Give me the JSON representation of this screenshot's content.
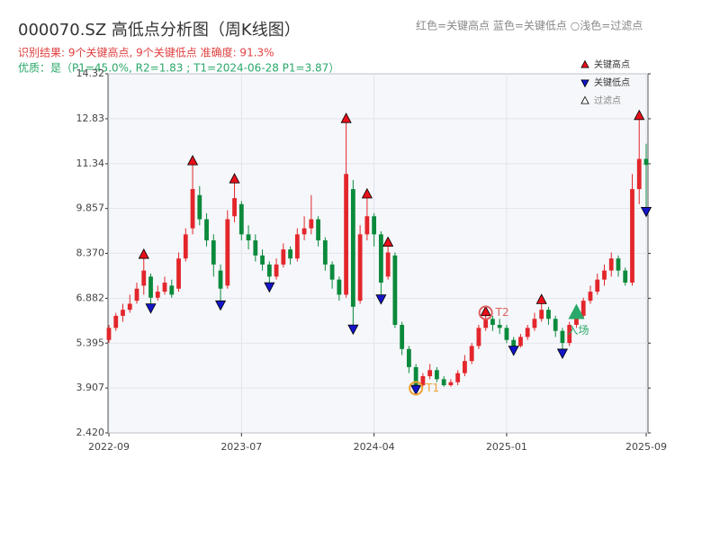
{
  "chart_data": {
    "type": "candlestick",
    "title": "000070.SZ 高低点分析图（周K线图）",
    "subtitle": "识别结果: 9个关键高点, 9个关键低点  准确度: 91.3%",
    "quality": "优质：是（P1=45.0%, R2=1.83 ; T1=2024-06-28 P1=3.87）",
    "color_note": "红色=关键高点      蓝色=关键低点   ○浅色=过滤点",
    "legend": [
      "关键高点",
      "关键低点",
      "过滤点"
    ],
    "up_color": "#e3262b",
    "down_color": "#0b8a3c",
    "high_color": "#e8101a",
    "low_color": "#1414c8",
    "entry_color": "#2aa86a",
    "ylim": [
      2.42,
      14.32
    ],
    "yticks": [
      {
        "value": 2.42,
        "label": "2.420"
      },
      3.907,
      5.395,
      6.882,
      {
        "value": 8.37,
        "label": "8.370"
      },
      9.857,
      11.34,
      12.83,
      14.32
    ],
    "grid": true,
    "categories": [
      "2022-09",
      null,
      null,
      null,
      null,
      null,
      null,
      null,
      null,
      null,
      null,
      null,
      null,
      null,
      null,
      null,
      null,
      null,
      null,
      "2023-07",
      null,
      null,
      null,
      null,
      null,
      null,
      null,
      null,
      null,
      null,
      null,
      null,
      null,
      null,
      null,
      null,
      null,
      null,
      "2024-04",
      null,
      null,
      null,
      null,
      null,
      null,
      null,
      null,
      null,
      null,
      null,
      null,
      null,
      null,
      null,
      null,
      null,
      null,
      "2025-01",
      null,
      null,
      null,
      null,
      null,
      null,
      null,
      null,
      null,
      null,
      null,
      null,
      null,
      null,
      null,
      null,
      null,
      null,
      null,
      "2025-09"
    ],
    "candles": [
      [
        5.5,
        5.9,
        5.4,
        6.0
      ],
      [
        5.9,
        6.3,
        5.8,
        6.4
      ],
      [
        6.3,
        6.5,
        6.1,
        6.7
      ],
      [
        6.5,
        6.7,
        6.4,
        7.0
      ],
      [
        6.8,
        7.2,
        6.7,
        7.4
      ],
      [
        7.3,
        7.8,
        7.0,
        8.3
      ],
      [
        7.6,
        6.9,
        6.6,
        7.7
      ],
      [
        6.9,
        7.1,
        6.8,
        7.3
      ],
      [
        7.1,
        7.4,
        7.0,
        7.6
      ],
      [
        7.3,
        7.0,
        6.9,
        7.5
      ],
      [
        7.2,
        8.2,
        7.1,
        8.4
      ],
      [
        8.2,
        9.0,
        8.1,
        9.2
      ],
      [
        9.2,
        10.5,
        9.0,
        11.4
      ],
      [
        10.3,
        9.5,
        9.3,
        10.6
      ],
      [
        9.5,
        8.8,
        8.6,
        9.7
      ],
      [
        8.8,
        8.0,
        7.6,
        9.0
      ],
      [
        7.8,
        7.2,
        6.7,
        8.0
      ],
      [
        7.3,
        9.5,
        7.2,
        9.8
      ],
      [
        9.6,
        10.2,
        9.4,
        10.8
      ],
      [
        10.0,
        9.0,
        8.8,
        10.1
      ],
      [
        9.0,
        8.8,
        8.5,
        9.3
      ],
      [
        8.8,
        8.3,
        8.1,
        9.0
      ],
      [
        8.3,
        8.0,
        7.8,
        8.5
      ],
      [
        8.0,
        7.6,
        7.3,
        8.1
      ],
      [
        7.6,
        8.0,
        7.5,
        8.2
      ],
      [
        8.0,
        8.5,
        7.9,
        8.7
      ],
      [
        8.5,
        8.2,
        8.0,
        8.6
      ],
      [
        8.2,
        9.0,
        8.1,
        9.2
      ],
      [
        9.0,
        9.2,
        8.8,
        9.6
      ],
      [
        9.2,
        9.5,
        9.0,
        10.3
      ],
      [
        9.5,
        8.8,
        8.6,
        9.6
      ],
      [
        8.8,
        8.0,
        7.8,
        8.9
      ],
      [
        8.0,
        7.5,
        7.2,
        8.1
      ],
      [
        7.5,
        7.0,
        6.8,
        7.6
      ],
      [
        7.0,
        11.0,
        6.9,
        12.8
      ],
      [
        10.5,
        6.6,
        5.9,
        10.8
      ],
      [
        6.8,
        9.0,
        6.7,
        9.3
      ],
      [
        9.0,
        9.6,
        8.8,
        10.3
      ],
      [
        9.6,
        9.0,
        8.6,
        9.7
      ],
      [
        9.0,
        7.4,
        6.9,
        9.1
      ],
      [
        7.6,
        8.4,
        7.5,
        8.7
      ],
      [
        8.3,
        6.0,
        5.9,
        8.4
      ],
      [
        6.0,
        5.2,
        5.0,
        6.1
      ],
      [
        5.2,
        4.6,
        4.4,
        5.3
      ],
      [
        4.6,
        4.0,
        3.9,
        4.7
      ],
      [
        4.0,
        4.3,
        3.95,
        4.4
      ],
      [
        4.3,
        4.5,
        4.2,
        4.7
      ],
      [
        4.5,
        4.2,
        4.1,
        4.6
      ],
      [
        4.2,
        4.0,
        3.95,
        4.3
      ],
      [
        4.0,
        4.1,
        3.95,
        4.2
      ],
      [
        4.1,
        4.4,
        4.0,
        4.5
      ],
      [
        4.4,
        4.8,
        4.3,
        5.0
      ],
      [
        4.8,
        5.3,
        4.7,
        5.4
      ],
      [
        5.3,
        5.9,
        5.2,
        6.0
      ],
      [
        5.9,
        6.2,
        5.8,
        6.4
      ],
      [
        6.2,
        6.0,
        5.8,
        6.3
      ],
      [
        6.0,
        5.9,
        5.7,
        6.2
      ],
      [
        5.9,
        5.5,
        5.4,
        6.0
      ],
      [
        5.5,
        5.3,
        5.2,
        5.6
      ],
      [
        5.3,
        5.6,
        5.25,
        5.7
      ],
      [
        5.6,
        5.9,
        5.5,
        6.0
      ],
      [
        5.9,
        6.2,
        5.8,
        6.4
      ],
      [
        6.2,
        6.5,
        6.1,
        6.8
      ],
      [
        6.5,
        6.2,
        6.0,
        6.6
      ],
      [
        6.2,
        5.8,
        5.6,
        6.3
      ],
      [
        5.8,
        5.4,
        5.1,
        5.9
      ],
      [
        5.4,
        6.0,
        5.3,
        6.1
      ],
      [
        6.0,
        6.3,
        5.9,
        6.4
      ],
      [
        6.3,
        6.8,
        6.2,
        6.9
      ],
      [
        6.8,
        7.1,
        6.7,
        7.3
      ],
      [
        7.1,
        7.5,
        7.0,
        7.7
      ],
      [
        7.5,
        7.8,
        7.3,
        8.0
      ],
      [
        7.8,
        8.2,
        7.6,
        8.4
      ],
      [
        8.2,
        7.8,
        7.6,
        8.3
      ],
      [
        7.8,
        7.4,
        7.3,
        7.9
      ],
      [
        7.4,
        10.5,
        7.3,
        11.0
      ],
      [
        10.5,
        11.5,
        10.0,
        12.9
      ],
      [
        11.5,
        11.3,
        9.8,
        12.0
      ]
    ],
    "high_markers": [
      null,
      null,
      null,
      null,
      null,
      8.3,
      null,
      null,
      null,
      null,
      null,
      null,
      11.4,
      null,
      null,
      null,
      null,
      null,
      10.8,
      null,
      null,
      null,
      null,
      null,
      null,
      null,
      null,
      null,
      null,
      null,
      null,
      null,
      null,
      null,
      12.8,
      null,
      null,
      10.3,
      null,
      null,
      8.7,
      null,
      null,
      null,
      null,
      null,
      null,
      null,
      null,
      null,
      null,
      null,
      null,
      null,
      6.4,
      null,
      null,
      null,
      null,
      null,
      null,
      null,
      6.8,
      null,
      null,
      null,
      null,
      null,
      null,
      null,
      null,
      null,
      null,
      null,
      null,
      null,
      12.9,
      null
    ],
    "low_markers": [
      null,
      null,
      null,
      null,
      null,
      null,
      6.6,
      null,
      null,
      null,
      null,
      null,
      null,
      null,
      null,
      null,
      6.7,
      null,
      null,
      null,
      null,
      null,
      null,
      7.3,
      null,
      null,
      null,
      null,
      null,
      null,
      null,
      null,
      null,
      null,
      null,
      5.9,
      null,
      null,
      null,
      6.9,
      null,
      null,
      null,
      null,
      3.9,
      null,
      null,
      null,
      null,
      null,
      null,
      null,
      null,
      null,
      null,
      null,
      null,
      null,
      5.2,
      null,
      null,
      null,
      null,
      null,
      null,
      5.1,
      null,
      null,
      null,
      null,
      null,
      null,
      null,
      null,
      null,
      null,
      null,
      9.8
    ],
    "entry_markers": [
      null,
      null,
      null,
      null,
      null,
      null,
      null,
      null,
      null,
      null,
      null,
      null,
      null,
      null,
      null,
      null,
      null,
      null,
      null,
      null,
      null,
      null,
      null,
      null,
      null,
      null,
      null,
      null,
      null,
      null,
      null,
      null,
      null,
      null,
      null,
      null,
      null,
      null,
      null,
      null,
      null,
      null,
      null,
      null,
      null,
      null,
      null,
      null,
      null,
      null,
      null,
      null,
      null,
      null,
      null,
      null,
      null,
      null,
      null,
      null,
      null,
      null,
      null,
      null,
      null,
      null,
      null,
      6.4,
      null,
      null,
      null,
      null,
      null,
      null,
      null,
      null,
      null,
      null
    ],
    "labels": [
      null,
      null,
      null,
      null,
      null,
      null,
      null,
      null,
      null,
      null,
      null,
      null,
      null,
      null,
      null,
      null,
      null,
      null,
      null,
      null,
      null,
      null,
      null,
      null,
      null,
      null,
      null,
      null,
      null,
      null,
      null,
      null,
      null,
      null,
      null,
      null,
      null,
      null,
      null,
      null,
      null,
      null,
      null,
      null,
      "T1",
      null,
      null,
      null,
      null,
      null,
      null,
      null,
      null,
      null,
      "T2",
      null,
      null,
      null,
      null,
      null,
      null,
      null,
      null,
      null,
      null,
      null,
      null,
      "入场",
      null,
      null,
      null,
      null,
      null,
      null,
      null,
      null,
      null,
      null
    ],
    "label_colors": [
      null,
      null,
      null,
      null,
      null,
      null,
      null,
      null,
      null,
      null,
      null,
      null,
      null,
      null,
      null,
      null,
      null,
      null,
      null,
      null,
      null,
      null,
      null,
      null,
      null,
      null,
      null,
      null,
      null,
      null,
      null,
      null,
      null,
      null,
      null,
      null,
      null,
      null,
      null,
      null,
      null,
      null,
      null,
      null,
      "#f0a030",
      null,
      null,
      null,
      null,
      null,
      null,
      null,
      null,
      null,
      "#e06060",
      null,
      null,
      null,
      null,
      null,
      null,
      null,
      null,
      null,
      null,
      null,
      null,
      "#2aa86a",
      null,
      null,
      null,
      null,
      null,
      null,
      null,
      null,
      null,
      null
    ]
  }
}
